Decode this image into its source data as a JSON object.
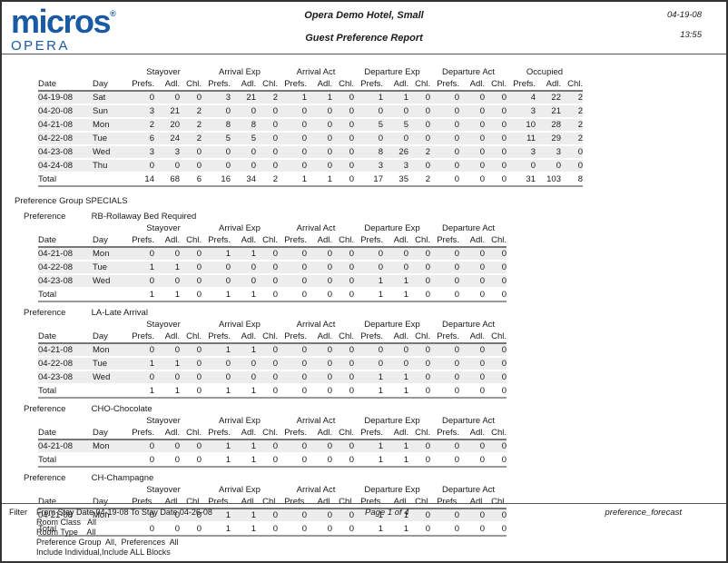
{
  "logo": {
    "primary": "micros",
    "registered": "®",
    "secondary": "OPERA"
  },
  "header": {
    "hotel_name": "Opera Demo Hotel, Small",
    "report_title": "Guest Preference Report",
    "date": "04-19-08",
    "time": "13:55"
  },
  "table_labels": {
    "date": "Date",
    "day": "Day",
    "prefs": "Prefs.",
    "adl": "Adl.",
    "chl": "Chl.",
    "total": "Total",
    "groups_main": [
      "Stayover",
      "Arrival Exp",
      "Arrival Act",
      "Departure Exp",
      "Departure Act",
      "Occupied"
    ],
    "groups_sub": [
      "Stayover",
      "Arrival Exp",
      "Arrival Act",
      "Departure Exp",
      "Departure Act"
    ]
  },
  "main_table": {
    "rows": [
      {
        "date": "04-19-08",
        "day": "Sat",
        "values": [
          0,
          0,
          0,
          3,
          21,
          2,
          1,
          1,
          0,
          1,
          1,
          0,
          0,
          0,
          0,
          4,
          22,
          2
        ]
      },
      {
        "date": "04-20-08",
        "day": "Sun",
        "values": [
          3,
          21,
          2,
          0,
          0,
          0,
          0,
          0,
          0,
          0,
          0,
          0,
          0,
          0,
          0,
          3,
          21,
          2
        ]
      },
      {
        "date": "04-21-08",
        "day": "Mon",
        "values": [
          2,
          20,
          2,
          8,
          8,
          0,
          0,
          0,
          0,
          5,
          5,
          0,
          0,
          0,
          0,
          10,
          28,
          2
        ]
      },
      {
        "date": "04-22-08",
        "day": "Tue",
        "values": [
          6,
          24,
          2,
          5,
          5,
          0,
          0,
          0,
          0,
          0,
          0,
          0,
          0,
          0,
          0,
          11,
          29,
          2
        ]
      },
      {
        "date": "04-23-08",
        "day": "Wed",
        "values": [
          3,
          3,
          0,
          0,
          0,
          0,
          0,
          0,
          0,
          8,
          26,
          2,
          0,
          0,
          0,
          3,
          3,
          0
        ]
      },
      {
        "date": "04-24-08",
        "day": "Thu",
        "values": [
          0,
          0,
          0,
          0,
          0,
          0,
          0,
          0,
          0,
          3,
          3,
          0,
          0,
          0,
          0,
          0,
          0,
          0
        ]
      }
    ],
    "total": [
      14,
      68,
      6,
      16,
      34,
      2,
      1,
      1,
      0,
      17,
      35,
      2,
      0,
      0,
      0,
      31,
      103,
      8
    ]
  },
  "preference_group": {
    "label": "Preference Group",
    "name": "SPECIALS",
    "preference_label": "Preference",
    "sections": [
      {
        "name": "RB-Rollaway Bed Required",
        "rows": [
          {
            "date": "04-21-08",
            "day": "Mon",
            "values": [
              0,
              0,
              0,
              1,
              1,
              0,
              0,
              0,
              0,
              0,
              0,
              0,
              0,
              0,
              0
            ]
          },
          {
            "date": "04-22-08",
            "day": "Tue",
            "values": [
              1,
              1,
              0,
              0,
              0,
              0,
              0,
              0,
              0,
              0,
              0,
              0,
              0,
              0,
              0
            ]
          },
          {
            "date": "04-23-08",
            "day": "Wed",
            "values": [
              0,
              0,
              0,
              0,
              0,
              0,
              0,
              0,
              0,
              1,
              1,
              0,
              0,
              0,
              0
            ]
          }
        ],
        "total": [
          1,
          1,
          0,
          1,
          1,
          0,
          0,
          0,
          0,
          1,
          1,
          0,
          0,
          0,
          0
        ]
      },
      {
        "name": "LA-Late Arrival",
        "rows": [
          {
            "date": "04-21-08",
            "day": "Mon",
            "values": [
              0,
              0,
              0,
              1,
              1,
              0,
              0,
              0,
              0,
              0,
              0,
              0,
              0,
              0,
              0
            ]
          },
          {
            "date": "04-22-08",
            "day": "Tue",
            "values": [
              1,
              1,
              0,
              0,
              0,
              0,
              0,
              0,
              0,
              0,
              0,
              0,
              0,
              0,
              0
            ]
          },
          {
            "date": "04-23-08",
            "day": "Wed",
            "values": [
              0,
              0,
              0,
              0,
              0,
              0,
              0,
              0,
              0,
              1,
              1,
              0,
              0,
              0,
              0
            ]
          }
        ],
        "total": [
          1,
          1,
          0,
          1,
          1,
          0,
          0,
          0,
          0,
          1,
          1,
          0,
          0,
          0,
          0
        ]
      },
      {
        "name": "CHO-Chocolate",
        "rows": [
          {
            "date": "04-21-08",
            "day": "Mon",
            "values": [
              0,
              0,
              0,
              1,
              1,
              0,
              0,
              0,
              0,
              1,
              1,
              0,
              0,
              0,
              0
            ]
          }
        ],
        "total": [
          0,
          0,
          0,
          1,
          1,
          0,
          0,
          0,
          0,
          1,
          1,
          0,
          0,
          0,
          0
        ]
      },
      {
        "name": "CH-Champagne",
        "rows": [
          {
            "date": "04-21-08",
            "day": "Mon",
            "values": [
              0,
              0,
              0,
              1,
              1,
              0,
              0,
              0,
              0,
              1,
              1,
              0,
              0,
              0,
              0
            ]
          }
        ],
        "total": [
          0,
          0,
          0,
          1,
          1,
          0,
          0,
          0,
          0,
          1,
          1,
          0,
          0,
          0,
          0
        ]
      }
    ]
  },
  "footer": {
    "filter_label": "Filter",
    "filter_lines": [
      "From Stay Date 04-19-08 To Stay Date 04-26-08",
      "Room Class   All",
      "Room Type    All",
      "Preference Group  All,  Preferences  All",
      "Include Individual,Include ALL Blocks"
    ],
    "page": "Page 1 of 4",
    "report_id": "preference_forecast"
  },
  "colors": {
    "brand_blue": "#1a5aa5",
    "row_stripe": "#ededed",
    "header_rule": "#777777",
    "total_rule": "#999999",
    "page_border": "#333333"
  }
}
